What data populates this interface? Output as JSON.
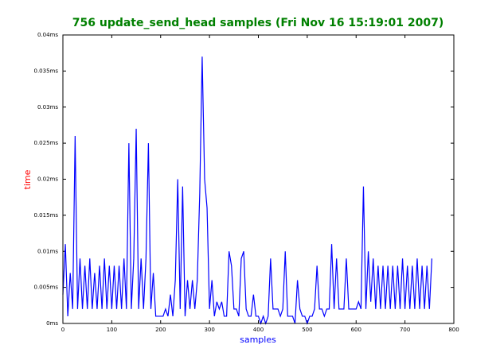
{
  "chart_data": {
    "type": "line",
    "title": "756 update_send_head samples (Fri Nov 16 15:19:01 2007)",
    "xlabel": "samples",
    "ylabel": "time",
    "xlim": [
      0,
      800
    ],
    "xticks": [
      0,
      100,
      200,
      300,
      400,
      500,
      600,
      700,
      800
    ],
    "ylim": [
      0,
      0.04
    ],
    "yticks": [
      {
        "value": 0,
        "label": "0ms"
      },
      {
        "value": 0.005,
        "label": "0.005ms"
      },
      {
        "value": 0.01,
        "label": "0.01ms"
      },
      {
        "value": 0.015,
        "label": "0.015ms"
      },
      {
        "value": 0.02,
        "label": "0.02ms"
      },
      {
        "value": 0.025,
        "label": "0.025ms"
      },
      {
        "value": 0.03,
        "label": "0.03ms"
      },
      {
        "value": 0.035,
        "label": "0.035ms"
      },
      {
        "value": 0.04,
        "label": "0.04ms"
      }
    ],
    "x": [
      0,
      5,
      10,
      15,
      20,
      25,
      30,
      35,
      40,
      45,
      50,
      55,
      60,
      65,
      70,
      75,
      80,
      85,
      90,
      95,
      100,
      105,
      110,
      115,
      120,
      125,
      130,
      135,
      140,
      145,
      150,
      155,
      160,
      165,
      170,
      175,
      180,
      185,
      190,
      195,
      200,
      205,
      210,
      215,
      220,
      225,
      230,
      235,
      240,
      245,
      250,
      255,
      260,
      265,
      270,
      275,
      280,
      285,
      290,
      295,
      300,
      305,
      310,
      315,
      320,
      325,
      330,
      335,
      340,
      345,
      350,
      355,
      360,
      365,
      370,
      375,
      380,
      385,
      390,
      395,
      400,
      405,
      410,
      415,
      420,
      425,
      430,
      435,
      440,
      445,
      450,
      455,
      460,
      465,
      470,
      475,
      480,
      485,
      490,
      495,
      500,
      505,
      510,
      515,
      520,
      525,
      530,
      535,
      540,
      545,
      550,
      555,
      560,
      565,
      570,
      575,
      580,
      585,
      590,
      595,
      600,
      605,
      610,
      615,
      620,
      625,
      630,
      635,
      640,
      645,
      650,
      655,
      660,
      665,
      670,
      675,
      680,
      685,
      690,
      695,
      700,
      705,
      710,
      715,
      720,
      725,
      730,
      735,
      740,
      745,
      750,
      755
    ],
    "series": [
      {
        "color": "#0000ff",
        "values": [
          0.004,
          0.011,
          0.001,
          0.007,
          0.002,
          0.026,
          0.002,
          0.009,
          0.002,
          0.008,
          0.002,
          0.009,
          0.002,
          0.007,
          0.002,
          0.008,
          0.002,
          0.009,
          0.002,
          0.008,
          0.002,
          0.008,
          0.002,
          0.008,
          0.002,
          0.009,
          0.002,
          0.025,
          0.002,
          0.009,
          0.027,
          0.002,
          0.009,
          0.002,
          0.009,
          0.025,
          0.002,
          0.007,
          0.001,
          0.001,
          0.001,
          0.001,
          0.002,
          0.001,
          0.004,
          0.001,
          0.006,
          0.02,
          0.002,
          0.019,
          0.001,
          0.006,
          0.002,
          0.006,
          0.002,
          0.006,
          0.018,
          0.037,
          0.02,
          0.016,
          0.002,
          0.006,
          0.001,
          0.003,
          0.002,
          0.003,
          0.001,
          0.001,
          0.01,
          0.008,
          0.002,
          0.002,
          0.001,
          0.009,
          0.01,
          0.002,
          0.001,
          0.001,
          0.004,
          0.001,
          0.001,
          0,
          0.001,
          0,
          0.001,
          0.009,
          0.002,
          0.002,
          0.002,
          0.001,
          0.002,
          0.01,
          0.001,
          0.001,
          0.001,
          0,
          0.006,
          0.002,
          0.001,
          0.001,
          0,
          0.001,
          0.001,
          0.002,
          0.008,
          0.002,
          0.002,
          0.001,
          0.002,
          0.002,
          0.011,
          0.002,
          0.009,
          0.002,
          0.002,
          0.002,
          0.009,
          0.002,
          0.002,
          0.002,
          0.002,
          0.003,
          0.002,
          0.019,
          0.002,
          0.01,
          0.003,
          0.009,
          0.002,
          0.008,
          0.002,
          0.008,
          0.002,
          0.008,
          0.002,
          0.008,
          0.002,
          0.008,
          0.002,
          0.009,
          0.002,
          0.008,
          0.002,
          0.008,
          0.002,
          0.009,
          0.002,
          0.008,
          0.002,
          0.008,
          0.002,
          0.009
        ]
      }
    ]
  }
}
